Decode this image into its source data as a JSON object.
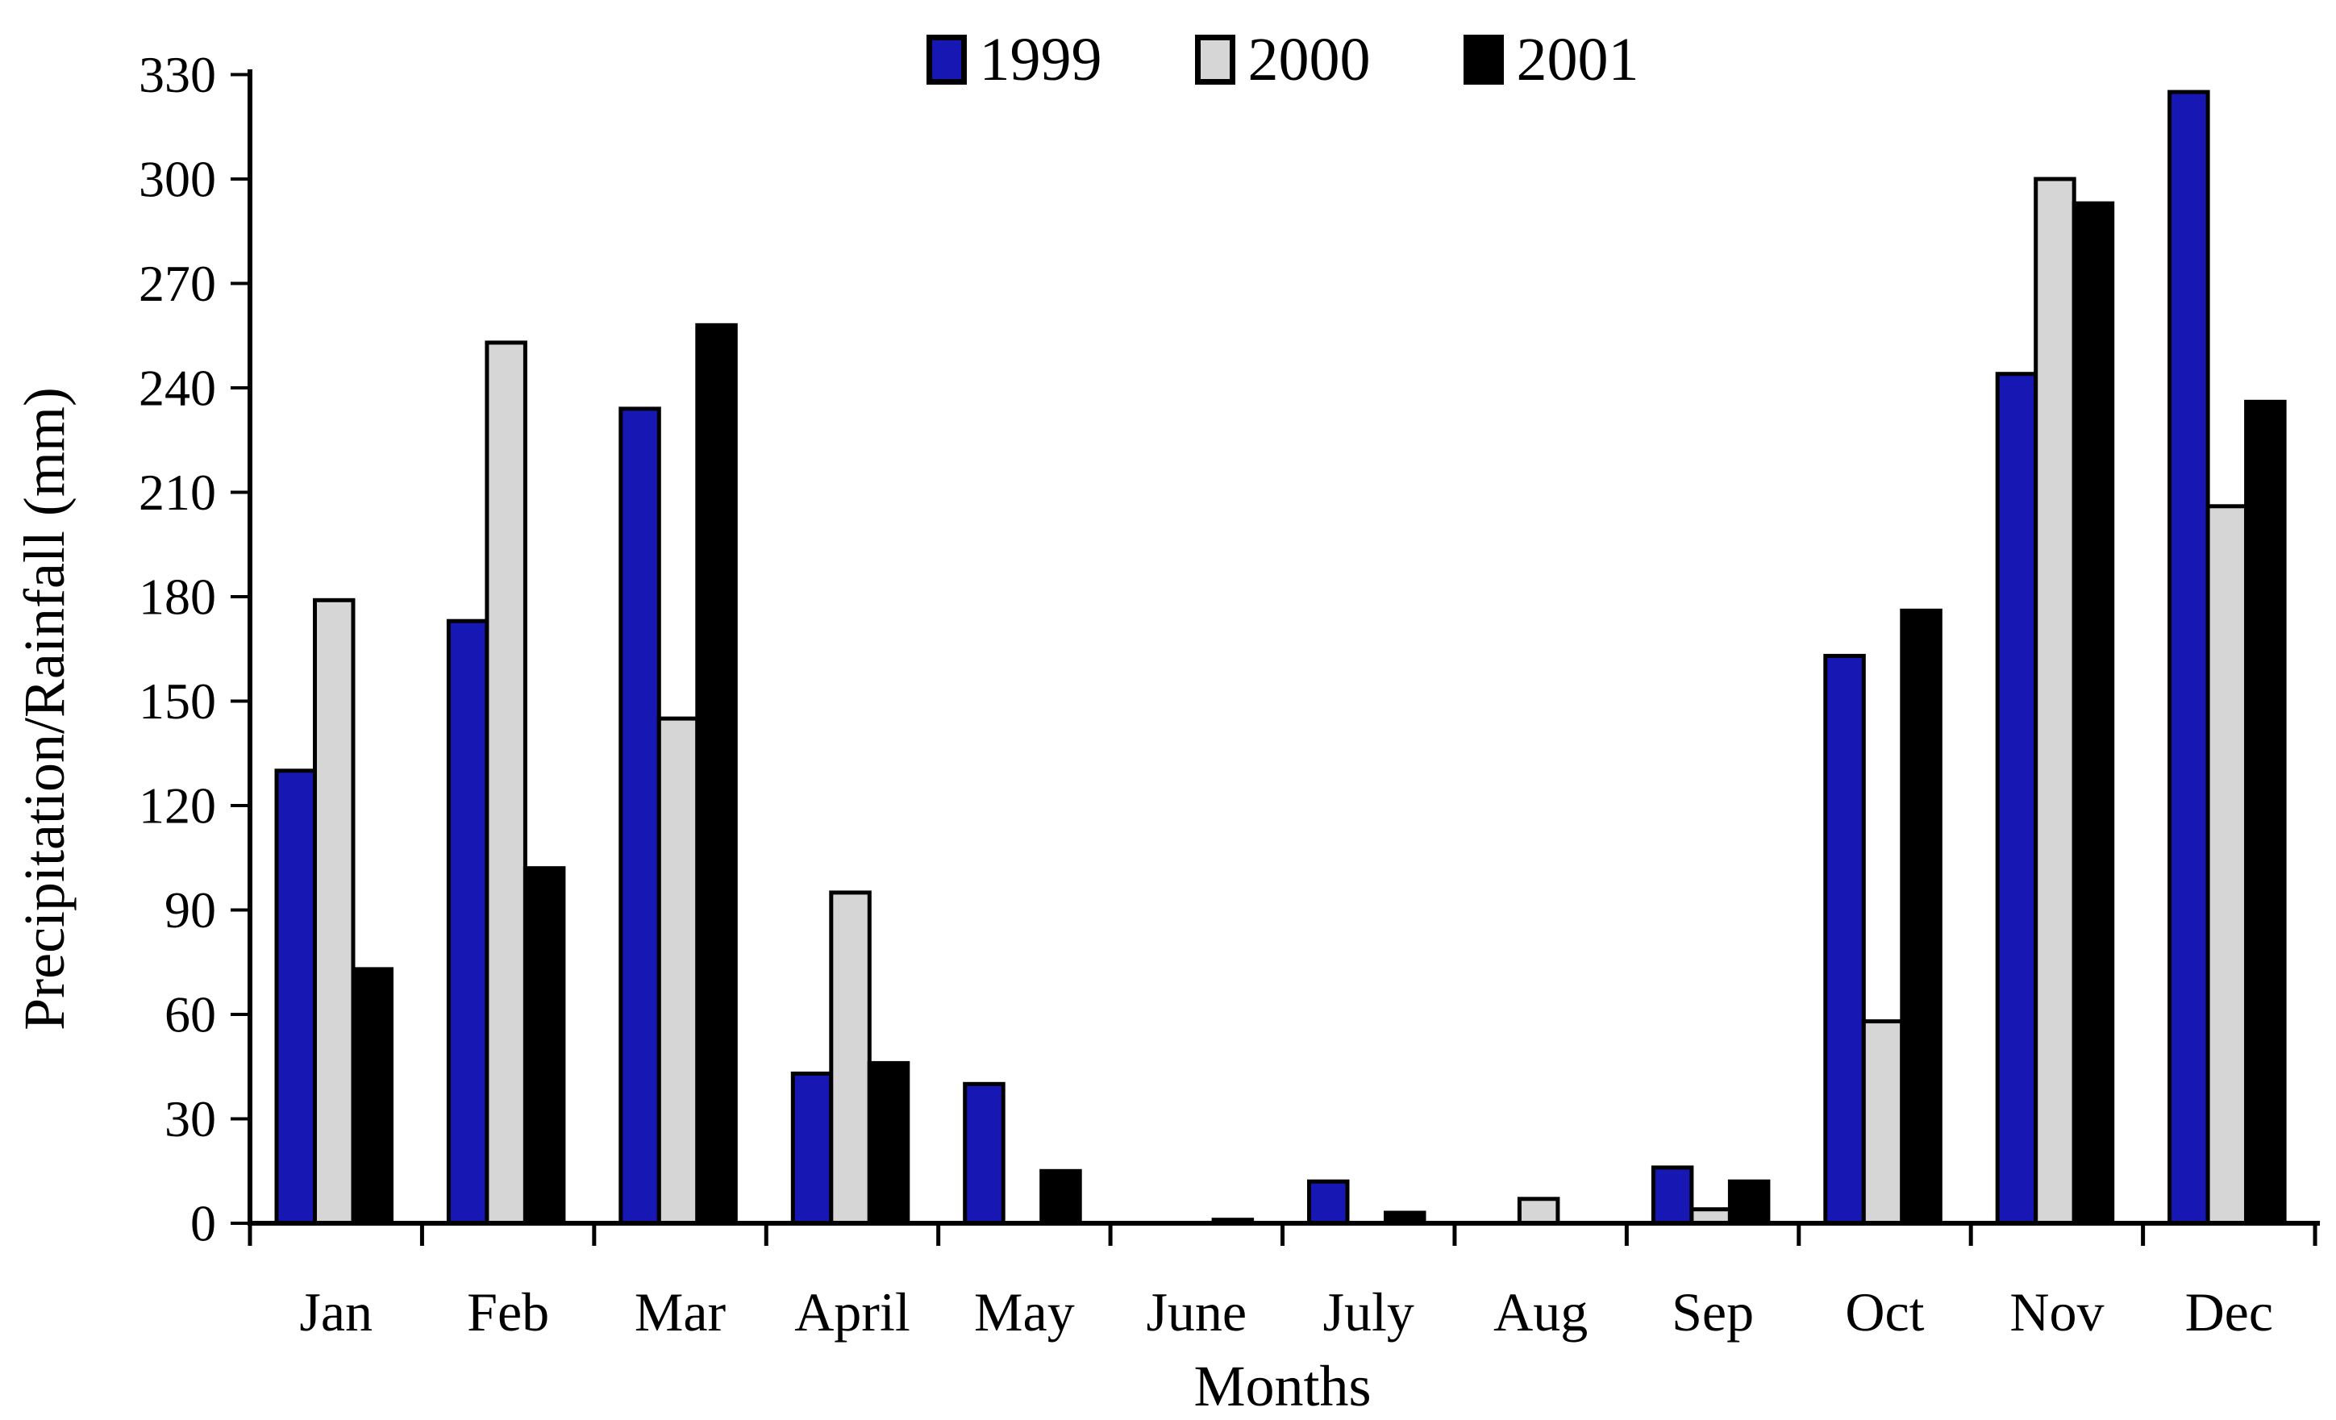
{
  "page": {
    "background": "#ffffff",
    "text_color": "#000000",
    "axis_color": "#000000"
  },
  "chart_data": {
    "type": "bar",
    "title": "",
    "xlabel": "Months",
    "ylabel": "Precipitation/Rainfall (mm)",
    "categories": [
      "Jan",
      "Feb",
      "Mar",
      "April",
      "May",
      "June",
      "July",
      "Aug",
      "Sep",
      "Oct",
      "Nov",
      "Dec"
    ],
    "series": [
      {
        "name": "1999",
        "color": "#1717b4",
        "values": [
          130,
          173,
          234,
          43,
          40,
          0,
          12,
          0,
          16,
          163,
          244,
          325
        ]
      },
      {
        "name": "2000",
        "color": "#d6d6d6",
        "values": [
          179,
          253,
          145,
          95,
          0,
          0,
          0,
          7,
          4,
          58,
          300,
          206
        ]
      },
      {
        "name": "2001",
        "color": "#000000",
        "values": [
          73,
          102,
          258,
          46,
          15,
          1,
          3,
          0,
          12,
          176,
          293,
          236
        ]
      }
    ],
    "ylim": [
      0,
      330
    ],
    "ytick_step": 30,
    "ytick_labels": [
      "0",
      "30",
      "60",
      "90",
      "120",
      "150",
      "180",
      "210",
      "240",
      "270",
      "300",
      "330"
    ],
    "grid": false,
    "legend_position": "top-center",
    "bar_border_color": "#000000",
    "background": "#ffffff"
  }
}
